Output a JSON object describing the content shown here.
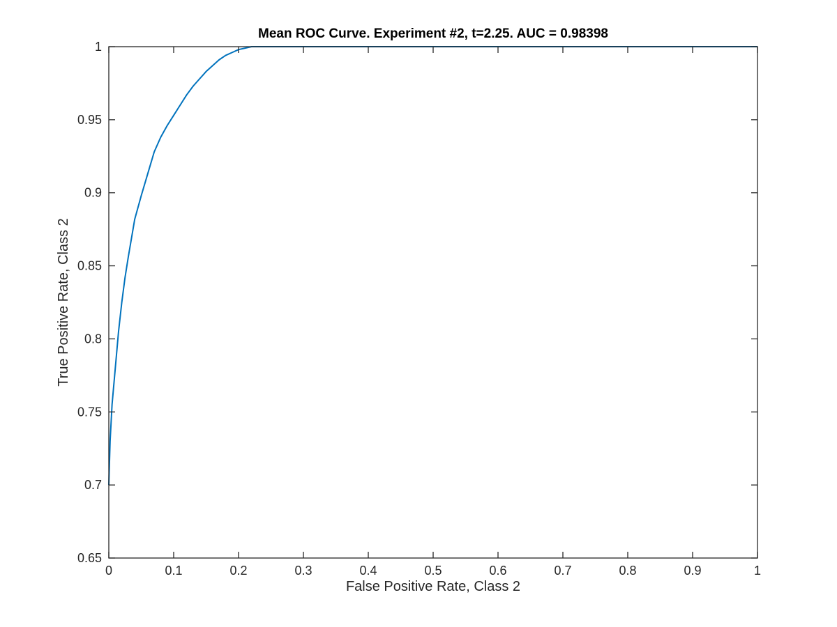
{
  "chart_data": {
    "type": "line",
    "title": "Mean ROC Curve. Experiment #2, t=2.25. AUC = 0.98398",
    "xlabel": "False Positive Rate, Class 2",
    "ylabel": "True Positive Rate, Class 2",
    "xlim": [
      0,
      1
    ],
    "ylim": [
      0.65,
      1
    ],
    "xticks": [
      "0",
      "0.1",
      "0.2",
      "0.3",
      "0.4",
      "0.5",
      "0.6",
      "0.7",
      "0.8",
      "0.9",
      "1"
    ],
    "yticks": [
      "0.65",
      "0.7",
      "0.75",
      "0.8",
      "0.85",
      "0.9",
      "0.95",
      "1"
    ],
    "grid": false,
    "box": true,
    "series": [
      {
        "color": "#0072bd",
        "x": [
          0,
          0.002,
          0.005,
          0.01,
          0.015,
          0.02,
          0.025,
          0.03,
          0.04,
          0.05,
          0.06,
          0.07,
          0.08,
          0.09,
          0.1,
          0.11,
          0.12,
          0.13,
          0.14,
          0.15,
          0.16,
          0.17,
          0.18,
          0.19,
          0.2,
          0.21,
          0.22,
          0.23,
          0.25,
          0.3,
          0.4,
          0.5,
          0.6,
          0.7,
          0.8,
          0.9,
          1
        ],
        "y": [
          0.7,
          0.73,
          0.755,
          0.78,
          0.805,
          0.825,
          0.842,
          0.856,
          0.882,
          0.898,
          0.913,
          0.928,
          0.938,
          0.946,
          0.953,
          0.96,
          0.967,
          0.973,
          0.978,
          0.983,
          0.987,
          0.991,
          0.994,
          0.996,
          0.998,
          0.999,
          1.0,
          1.0,
          1.0,
          1.0,
          1.0,
          1.0,
          1.0,
          1.0,
          1.0,
          1.0,
          1.0
        ]
      }
    ]
  }
}
